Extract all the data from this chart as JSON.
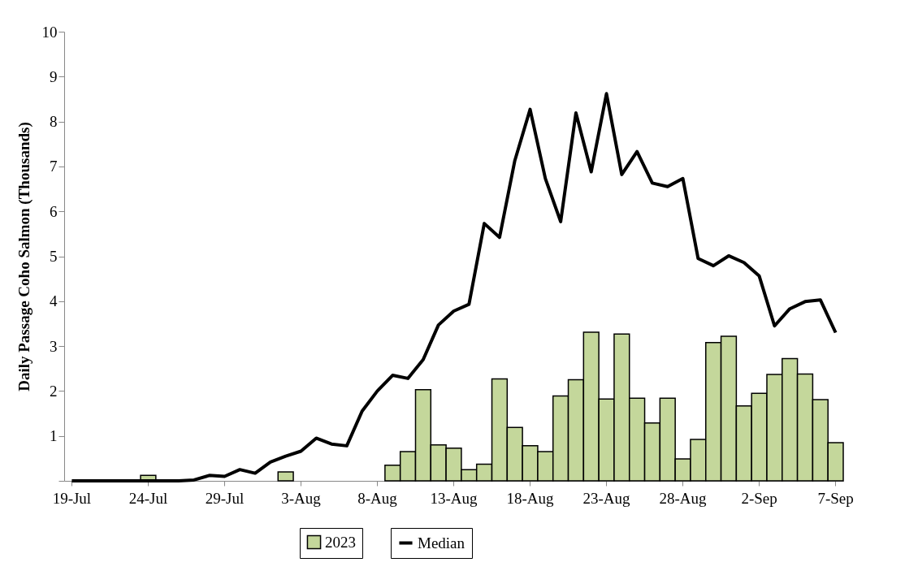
{
  "chart_data": {
    "type": "bar",
    "ylabel": "Daily Passage Coho Salmon (Thousands)",
    "categories": [
      "19-Jul",
      null,
      null,
      null,
      null,
      "24-Jul",
      null,
      null,
      null,
      null,
      "29-Jul",
      null,
      null,
      null,
      null,
      "3-Aug",
      null,
      null,
      null,
      null,
      "8-Aug",
      null,
      null,
      null,
      null,
      "13-Aug",
      null,
      null,
      null,
      null,
      "18-Aug",
      null,
      null,
      null,
      null,
      "23-Aug",
      null,
      null,
      null,
      null,
      "28-Aug",
      null,
      null,
      null,
      null,
      "2-Sep",
      null,
      null,
      null,
      null,
      "7-Sep"
    ],
    "series": [
      {
        "name": "2023",
        "color": "#c4d79b",
        "values": [
          null,
          null,
          null,
          null,
          null,
          0.12,
          null,
          null,
          null,
          null,
          null,
          null,
          null,
          null,
          0.2,
          null,
          null,
          null,
          null,
          null,
          null,
          0.35,
          0.65,
          2.03,
          0.8,
          0.73,
          0.25,
          0.37,
          2.27,
          1.19,
          0.78,
          0.65,
          1.89,
          2.25,
          3.31,
          1.82,
          3.27,
          1.84,
          1.29,
          1.84,
          0.49,
          0.92,
          3.08,
          3.22,
          1.67,
          1.95,
          2.37,
          2.72,
          2.38,
          1.81,
          0.85
        ]
      },
      {
        "name": "Median",
        "type": "line",
        "color": "#000000",
        "values": [
          0,
          0,
          0,
          0,
          0,
          0,
          0,
          0,
          0.02,
          0.12,
          0.1,
          0.25,
          0.17,
          0.42,
          0.55,
          0.66,
          0.95,
          0.82,
          0.78,
          1.55,
          2.0,
          2.35,
          2.28,
          2.7,
          3.47,
          3.78,
          3.93,
          5.73,
          5.42,
          7.13,
          8.27,
          6.73,
          5.77,
          8.19,
          6.88,
          8.62,
          6.82,
          7.33,
          6.63,
          6.55,
          6.73,
          4.95,
          4.79,
          5.01,
          4.86,
          4.56,
          3.45,
          3.83,
          3.99,
          4.03,
          3.3
        ]
      }
    ],
    "ylim": [
      0,
      10
    ],
    "yticks": [
      {
        "value": 0,
        "label": null
      },
      1,
      2,
      3,
      4,
      5,
      6,
      7,
      8,
      9,
      10
    ],
    "grid": false,
    "legend": "bottom",
    "line_style": "solid",
    "marker": "none"
  }
}
